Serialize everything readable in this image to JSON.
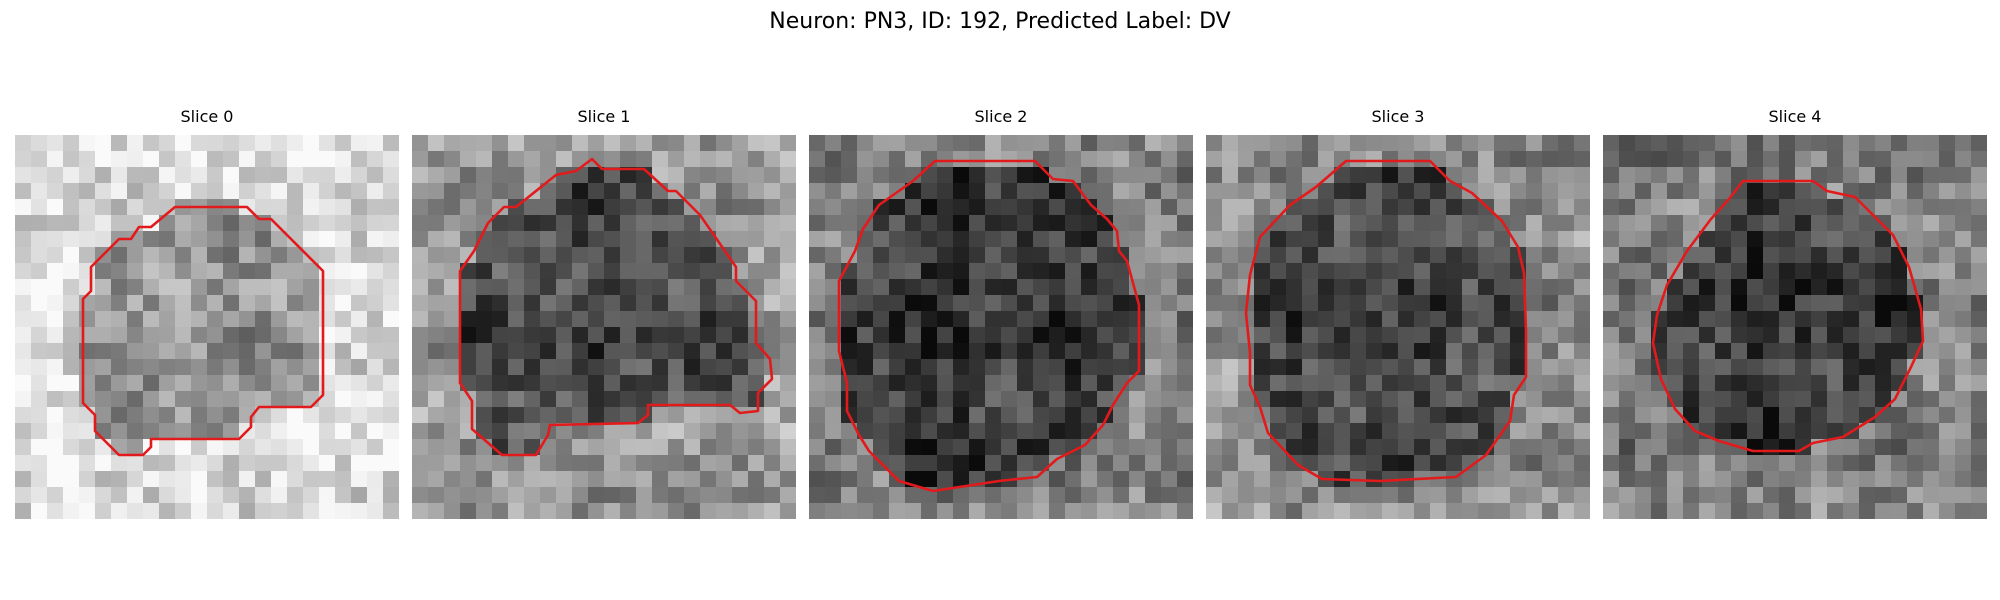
{
  "figure": {
    "title": "Neuron: PN3, ID: 192, Predicted Label: DV",
    "contour_color": "#e31a1c"
  },
  "slices": [
    {
      "title": "Slice 0",
      "mean_intensity": 0.68,
      "seed": 11,
      "contour_fill": 0.58
    },
    {
      "title": "Slice 1",
      "mean_intensity": 0.42,
      "seed": 29,
      "contour_fill": 0.3
    },
    {
      "title": "Slice 2",
      "mean_intensity": 0.34,
      "seed": 47,
      "contour_fill": 0.23
    },
    {
      "title": "Slice 3",
      "mean_intensity": 0.38,
      "seed": 83,
      "contour_fill": 0.28
    },
    {
      "title": "Slice 4",
      "mean_intensity": 0.32,
      "seed": 97,
      "contour_fill": 0.22
    }
  ]
}
